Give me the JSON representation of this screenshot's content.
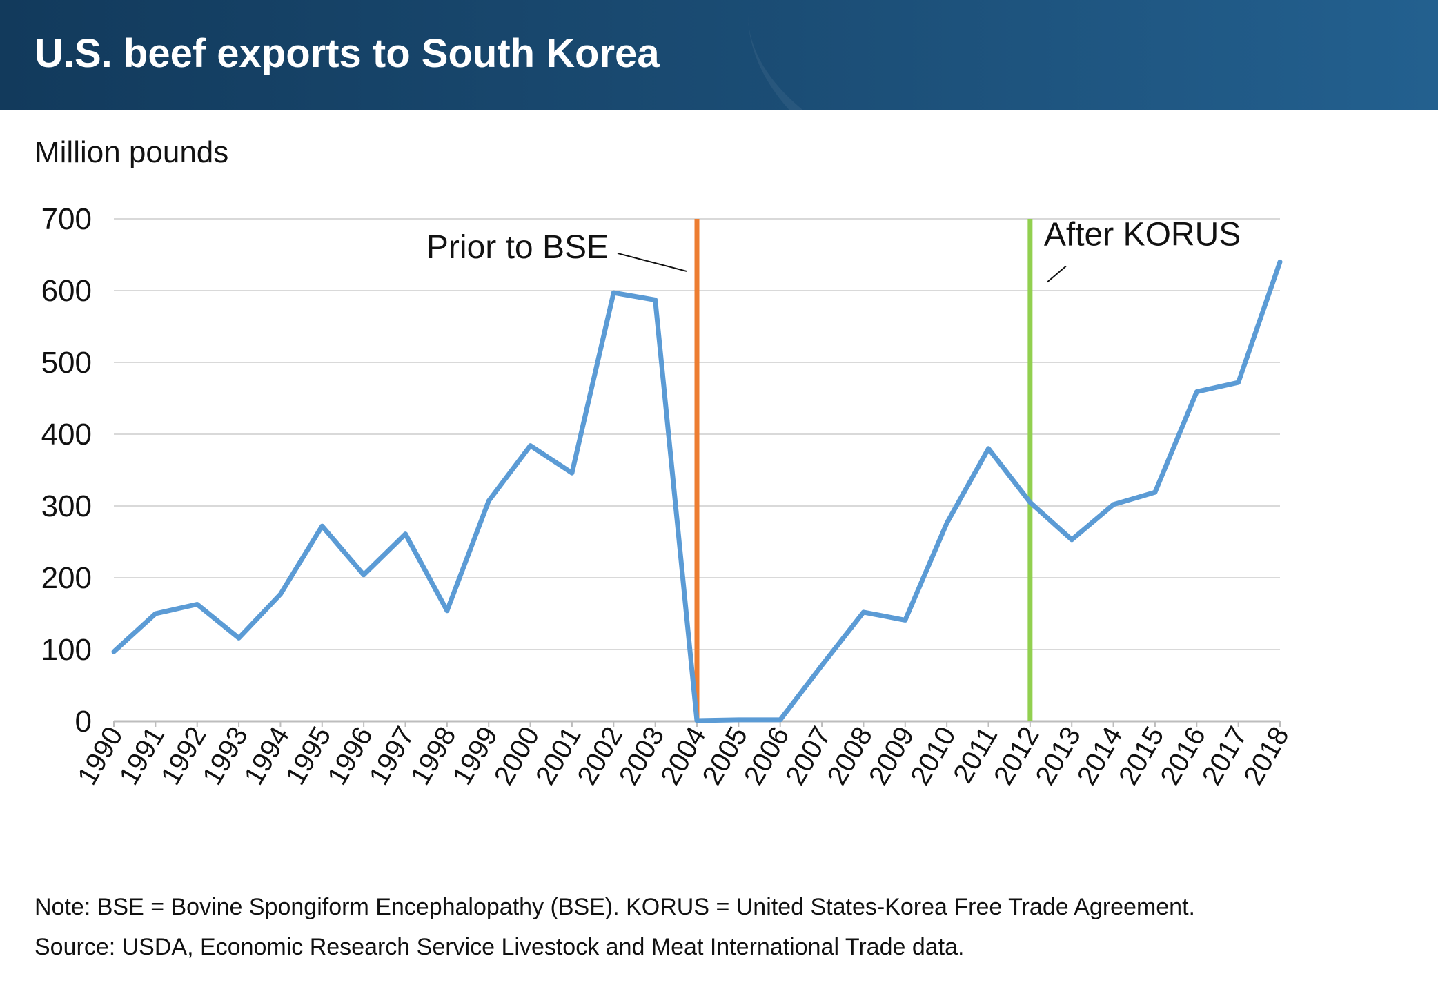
{
  "header": {
    "title": "U.S. beef exports to South Korea"
  },
  "chart_data": {
    "type": "line",
    "title": "U.S. beef exports to South Korea",
    "ylabel": "Million pounds",
    "xlabel": "",
    "ylim": [
      0,
      700
    ],
    "yticks": [
      0,
      100,
      200,
      300,
      400,
      500,
      600,
      700
    ],
    "grid": true,
    "categories": [
      "1990",
      "1991",
      "1992",
      "1993",
      "1994",
      "1995",
      "1996",
      "1997",
      "1998",
      "1999",
      "2000",
      "2001",
      "2002",
      "2003",
      "2004",
      "2005",
      "2006",
      "2007",
      "2008",
      "2009",
      "2010",
      "2011",
      "2012",
      "2013",
      "2014",
      "2015",
      "2016",
      "2017",
      "2018"
    ],
    "series": [
      {
        "color": "#5b9bd5",
        "values": [
          97,
          150,
          163,
          116,
          177,
          272,
          204,
          261,
          154,
          307,
          384,
          346,
          597,
          587,
          1,
          2,
          2,
          78,
          152,
          141,
          276,
          380,
          305,
          253,
          302,
          319,
          459,
          472,
          640
        ]
      }
    ],
    "annotations": [
      {
        "text": "Prior to BSE",
        "x": "2004",
        "line_color": "#ed7d31"
      },
      {
        "text": "After KORUS",
        "x": "2012",
        "line_color": "#92d050"
      }
    ]
  },
  "notes": {
    "note": "Note: BSE = Bovine Spongiform Encephalopathy (BSE). KORUS = United States-Korea Free Trade Agreement.",
    "source": "Source: USDA, Economic Research Service Livestock and Meat International Trade data."
  }
}
